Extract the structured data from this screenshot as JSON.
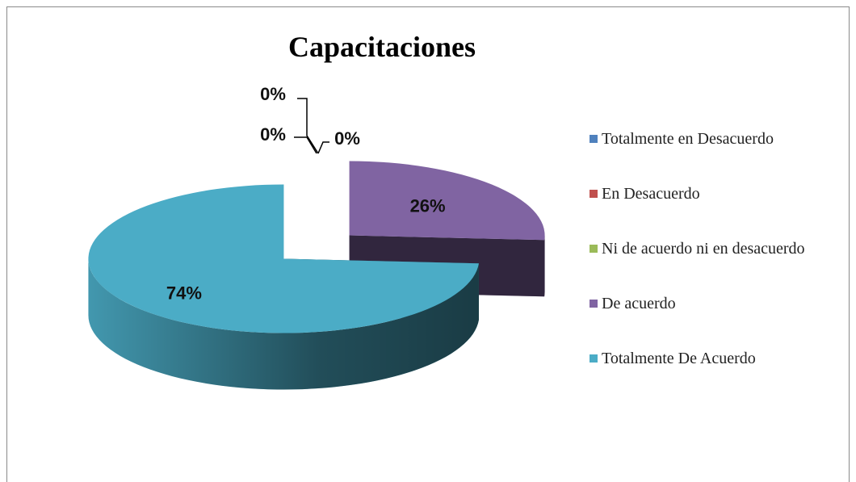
{
  "chart_data": {
    "type": "pie",
    "title": "Capacitaciones",
    "categories": [
      "Totalmente en Desacuerdo",
      "En Desacuerdo",
      "Ni de acuerdo ni en desacuerdo",
      "De acuerdo",
      "Totalmente De Acuerdo"
    ],
    "values": [
      0,
      0,
      0,
      26,
      74
    ],
    "value_labels": [
      "0%",
      "0%",
      "0%",
      "26%",
      "74%"
    ],
    "colors": [
      "#4f81bd",
      "#c0504d",
      "#9bbb59",
      "#8064a2",
      "#4bacc6"
    ],
    "legend": "right"
  }
}
